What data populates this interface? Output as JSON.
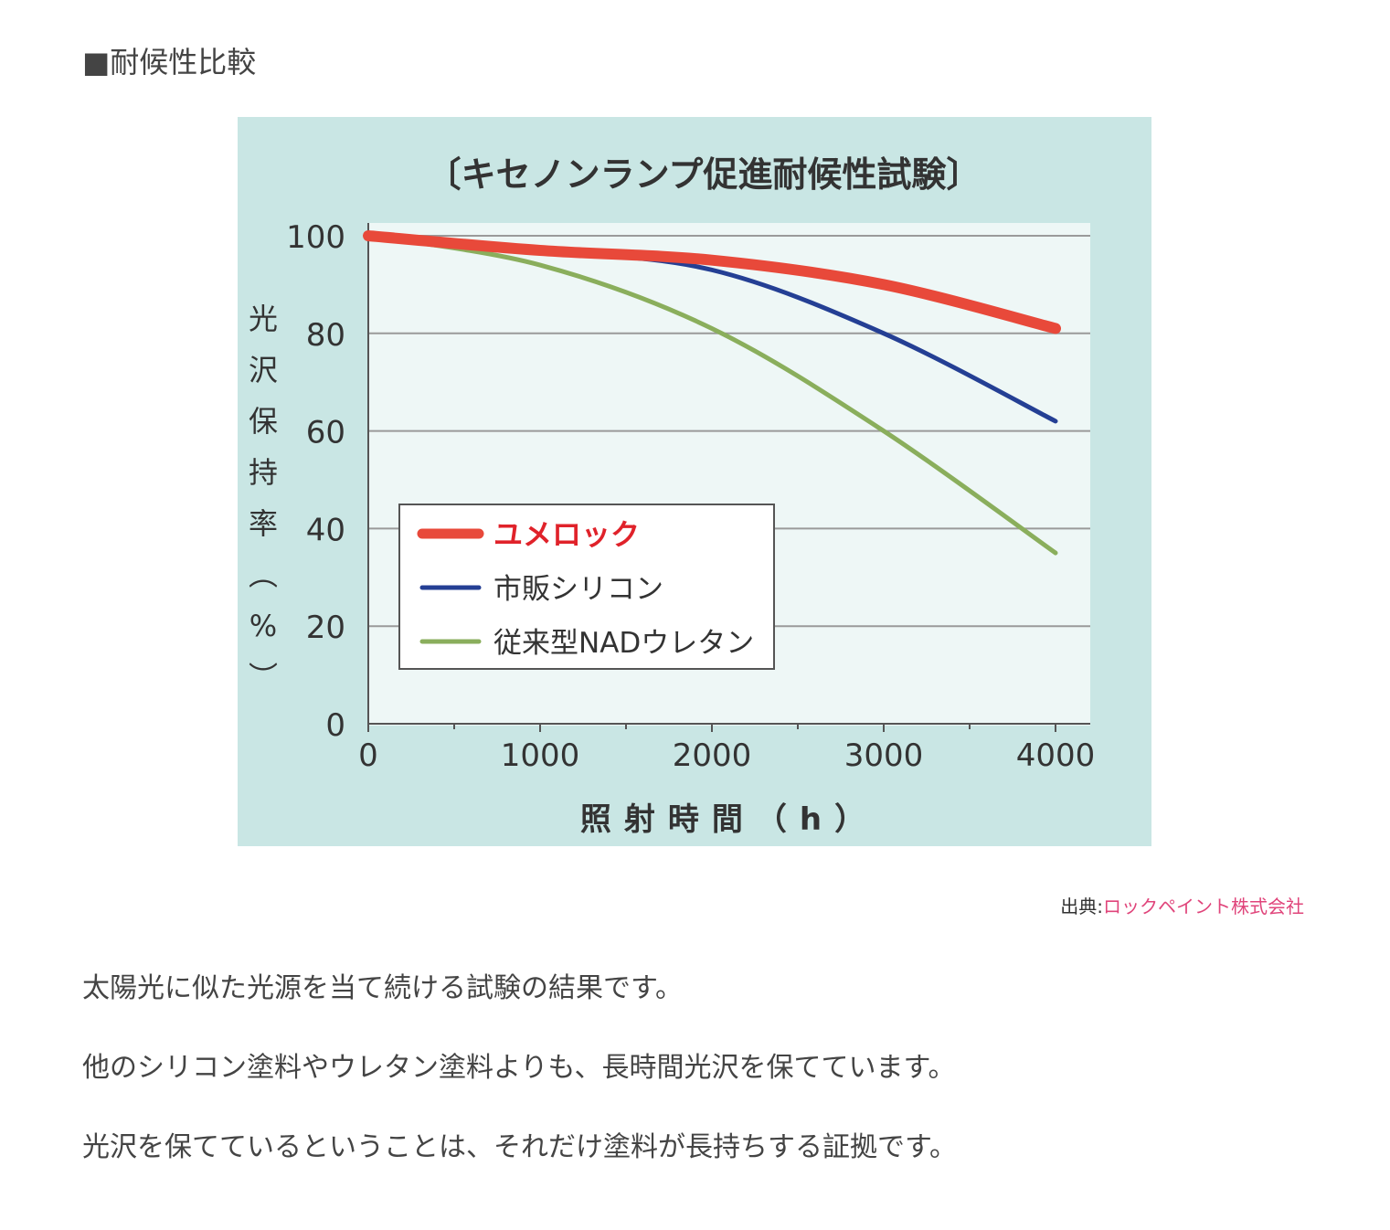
{
  "heading": "■耐候性比較",
  "source": {
    "prefix": "出典:",
    "link": "ロックペイント株式会社"
  },
  "paragraphs": [
    "太陽光に似た光源を当て続ける試験の結果です。",
    "他のシリコン塗料やウレタン塗料よりも、長時間光沢を保てています。",
    "光沢を保てているということは、それだけ塗料が長持ちする証拠です。"
  ],
  "chart_data": {
    "type": "line",
    "title": "〔キセノンランプ促進耐候性試験〕",
    "xlabel": "照射時間（h）",
    "ylabel": "光沢保持率（%）",
    "xlim": [
      0,
      4000
    ],
    "ylim": [
      0,
      100
    ],
    "xticks": [
      0,
      1000,
      2000,
      3000,
      4000
    ],
    "yticks": [
      0,
      20,
      40,
      60,
      80,
      100
    ],
    "grid": "horizontal",
    "legend_position": "lower-left",
    "x": [
      0,
      1000,
      2000,
      3000,
      4000
    ],
    "series": [
      {
        "name": "ユメロック",
        "values": [
          100,
          97,
          95,
          90,
          81
        ],
        "color": "#e8493a",
        "emphasis": true
      },
      {
        "name": "市販シリコン",
        "values": [
          100,
          97,
          93,
          80,
          62
        ],
        "color": "#243f94"
      },
      {
        "name": "従来型NADウレタン",
        "values": [
          100,
          94,
          81,
          60,
          35
        ],
        "color": "#8aae5c"
      }
    ]
  }
}
